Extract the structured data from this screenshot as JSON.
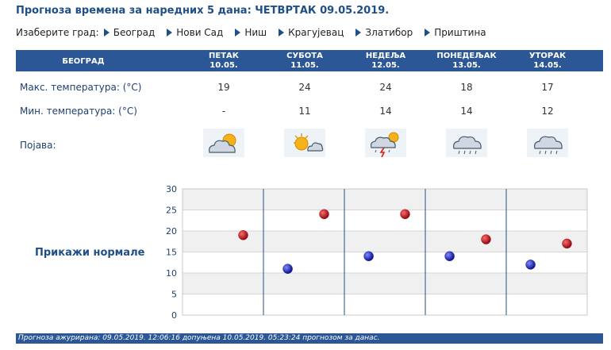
{
  "header": {
    "title": "Прогноза времена за наредних 5 дана: ЧЕТВРТАК  09.05.2019."
  },
  "city_select": {
    "label": "Изаберите град:",
    "cities": [
      "Београд",
      "Нови Сад",
      "Ниш",
      "Крагујевац",
      "Златибор",
      "Приштина"
    ]
  },
  "table": {
    "city": "БЕОГРАД",
    "days": [
      {
        "name": "ПЕТАК",
        "date": "10.05.",
        "max": "19",
        "min": "-",
        "icon": "partly-cloudy-icon"
      },
      {
        "name": "СУБОТА",
        "date": "11.05.",
        "max": "24",
        "min": "11",
        "icon": "sunny-cloudy-icon"
      },
      {
        "name": "НЕДЕЉА",
        "date": "12.05.",
        "max": "24",
        "min": "14",
        "icon": "thunderstorm-icon"
      },
      {
        "name": "ПОНЕДЕЉАК",
        "date": "13.05.",
        "max": "18",
        "min": "14",
        "icon": "rain-icon"
      },
      {
        "name": "УТОРАК",
        "date": "14.05.",
        "max": "17",
        "min": "12",
        "icon": "rain-icon"
      }
    ],
    "max_label": "Макс. температура: (°C)",
    "min_label": "Мин. температура: (°C)",
    "phenomenon_label": "Појава:"
  },
  "normals_link": "Прикажи нормале",
  "chart_data": {
    "type": "scatter",
    "categories": [
      "10.05.",
      "11.05.",
      "12.05.",
      "13.05.",
      "14.05."
    ],
    "ylim": [
      0,
      30
    ],
    "yticks": [
      0,
      5,
      10,
      15,
      20,
      25,
      30
    ],
    "series": [
      {
        "color": "#1a1aa6",
        "points": [
          {
            "x": 1,
            "y": 11
          },
          {
            "x": 2,
            "y": 14
          },
          {
            "x": 3,
            "y": 14
          },
          {
            "x": 4,
            "y": 12
          }
        ]
      },
      {
        "color": "#b8101a",
        "points": [
          {
            "x": 0,
            "y": 19
          },
          {
            "x": 1,
            "y": 24
          },
          {
            "x": 2,
            "y": 24
          },
          {
            "x": 3,
            "y": 18
          },
          {
            "x": 4,
            "y": 17
          }
        ]
      }
    ],
    "grid": true
  },
  "footer": {
    "text": "Прогноза ажурирана:  09.05.2019. 12:06:16 допуњена 10.05.2019. 05:23:24 прогнозом за данас."
  }
}
